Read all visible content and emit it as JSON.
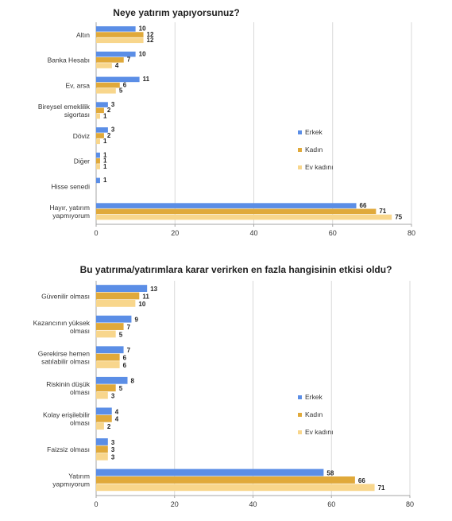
{
  "colors": {
    "erkek": "#5b8ee6",
    "kadin": "#e0a93a",
    "evkadini": "#f8d68c"
  },
  "chart_data": [
    {
      "type": "bar",
      "orientation": "horizontal",
      "title": "Neye yatırım yapıyorsunuz?",
      "categories": [
        [
          "Altın"
        ],
        [
          "Banka Hesabı"
        ],
        [
          "Ev, arsa"
        ],
        [
          "Bireysel emeklilik",
          "sigortası"
        ],
        [
          "Döviz"
        ],
        [
          "Diğer"
        ],
        [
          "Hisse senedi"
        ],
        [
          "Hayır, yatırım",
          "yapmıyorum"
        ]
      ],
      "series": [
        {
          "name": "Erkek",
          "color": "#5b8ee6",
          "values": [
            10,
            10,
            11,
            3,
            3,
            1,
            1,
            66
          ]
        },
        {
          "name": "Kadın",
          "color": "#e0a93a",
          "values": [
            12,
            7,
            6,
            2,
            2,
            1,
            null,
            71
          ]
        },
        {
          "name": "Ev kadını",
          "color": "#f8d68c",
          "values": [
            12,
            4,
            5,
            1,
            1,
            1,
            null,
            75
          ]
        }
      ],
      "xlim": [
        0,
        80
      ],
      "xticks": [
        0,
        20,
        40,
        60,
        80
      ],
      "grid": true,
      "legend": "right"
    },
    {
      "type": "bar",
      "orientation": "horizontal",
      "title": "Bu yatırıma/yatırımlara karar verirken en fazla hangisinin etkisi oldu?",
      "categories": [
        [
          "Güvenilir olması"
        ],
        [
          "Kazancının yüksek",
          "olması"
        ],
        [
          "Gerekirse hemen",
          "satılabilir olması"
        ],
        [
          "Riskinin düşük",
          "olması"
        ],
        [
          "Kolay erişilebilir",
          "olması"
        ],
        [
          "Faizsiz olması"
        ],
        [
          "Yatırım",
          "yapmıyorum"
        ]
      ],
      "series": [
        {
          "name": "Erkek",
          "color": "#5b8ee6",
          "values": [
            13,
            9,
            7,
            8,
            4,
            3,
            58
          ]
        },
        {
          "name": "Kadın",
          "color": "#e0a93a",
          "values": [
            11,
            7,
            6,
            5,
            4,
            3,
            66
          ]
        },
        {
          "name": "Ev kadını",
          "color": "#f8d68c",
          "values": [
            10,
            5,
            6,
            3,
            2,
            3,
            71
          ]
        }
      ],
      "xlim": [
        0,
        80
      ],
      "xticks": [
        0,
        20,
        40,
        60,
        80
      ],
      "grid": true,
      "legend": "right"
    }
  ]
}
